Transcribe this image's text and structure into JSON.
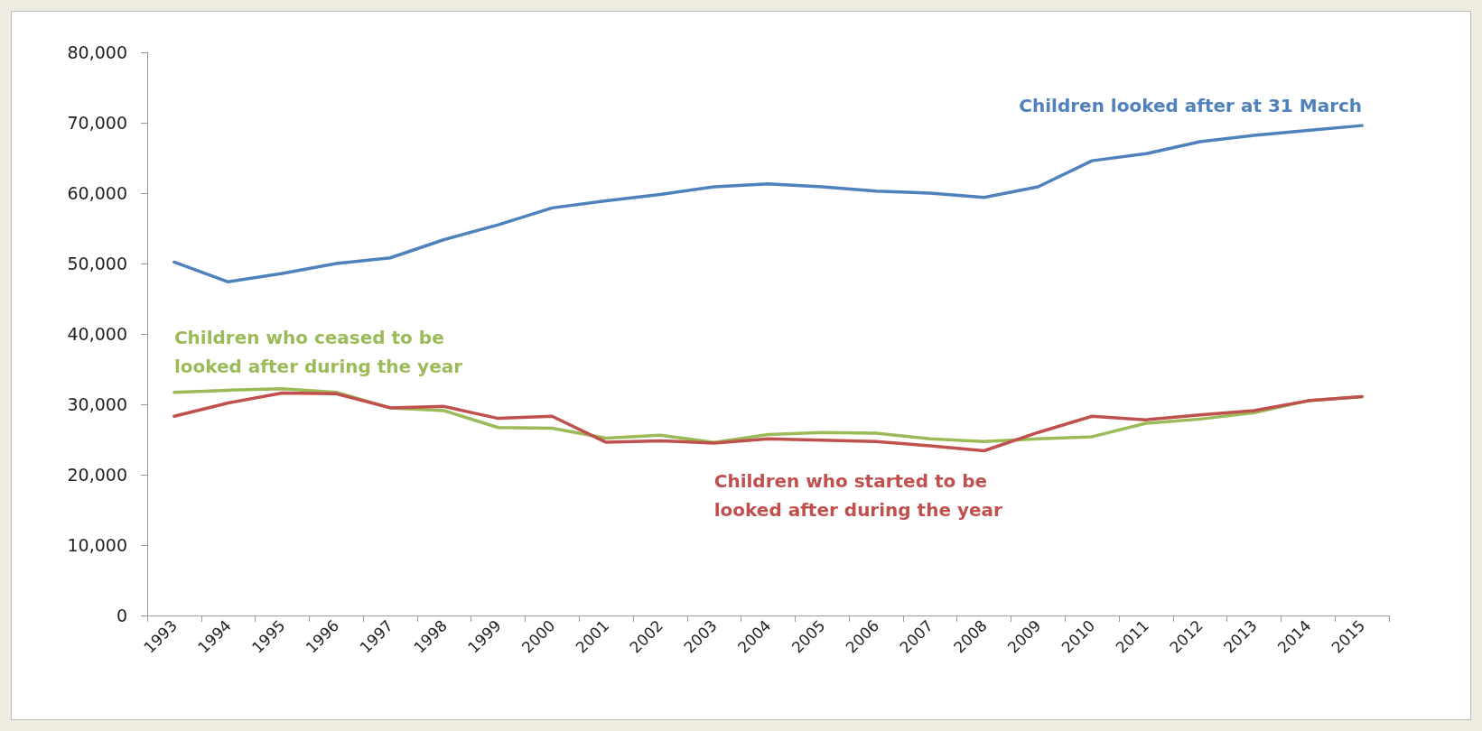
{
  "chart_data": {
    "type": "line",
    "categories": [
      "1993",
      "1994",
      "1995",
      "1996",
      "1997",
      "1998",
      "1999",
      "2000",
      "2001",
      "2002",
      "2003",
      "2004",
      "2005",
      "2006",
      "2007",
      "2008",
      "2009",
      "2010",
      "2011",
      "2012",
      "2013",
      "2014",
      "2015"
    ],
    "series": [
      {
        "name": "Children looked after at 31 March",
        "color": "#4f81bd",
        "values": [
          50200,
          47400,
          48600,
          50000,
          50800,
          53400,
          55500,
          57900,
          58900,
          59800,
          60900,
          61300,
          60900,
          60300,
          60000,
          59400,
          60900,
          64600,
          65600,
          67300,
          68200,
          68900,
          69600
        ]
      },
      {
        "name": "Children who ceased to be looked after during the year",
        "color": "#9bbb59",
        "values": [
          31700,
          32000,
          32200,
          31700,
          29500,
          29100,
          26700,
          26600,
          25200,
          25600,
          24600,
          25700,
          26000,
          25900,
          25100,
          24700,
          25100,
          25400,
          27300,
          27900,
          28800,
          30500,
          31100
        ]
      },
      {
        "name": "Children who started to be looked after during the year",
        "color": "#c0504d",
        "values": [
          28300,
          30200,
          31600,
          31500,
          29500,
          29700,
          28000,
          28300,
          24600,
          24800,
          24500,
          25100,
          24900,
          24700,
          24100,
          23400,
          26000,
          28300,
          27800,
          28500,
          29100,
          30500,
          31100
        ]
      }
    ],
    "ylim": [
      0,
      80000
    ],
    "yticks": [
      {
        "value": 0,
        "label": "0"
      },
      {
        "value": 10000,
        "label": "10,000"
      },
      {
        "value": 20000,
        "label": "20,000"
      },
      {
        "value": 30000,
        "label": "30,000"
      },
      {
        "value": 40000,
        "label": "40,000"
      },
      {
        "value": 50000,
        "label": "50,000"
      },
      {
        "value": 60000,
        "label": "60,000"
      },
      {
        "value": 70000,
        "label": "70,000"
      },
      {
        "value": 80000,
        "label": "80,000"
      }
    ],
    "grid": false,
    "legend": false,
    "marker": "none",
    "line_style": "solid"
  }
}
